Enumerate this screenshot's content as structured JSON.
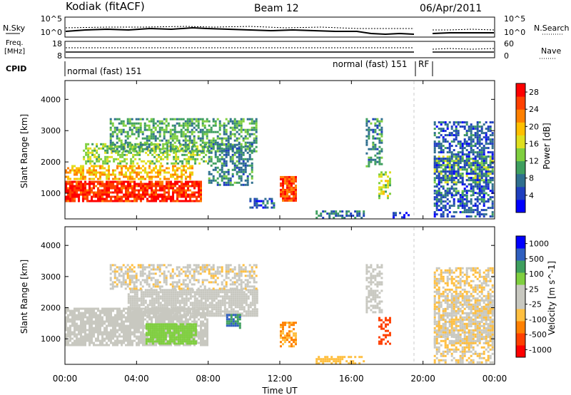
{
  "header": {
    "station": "Kodiak (fitACF)",
    "beam": "Beam 12",
    "date": "06/Apr/2011"
  },
  "colors": {
    "noise_sky_line": "#000000",
    "noise_search_line": "#000000",
    "frequency_line": "#000000",
    "nave_line": "#000000",
    "data_gap": "#ffffff",
    "axis": "#000000",
    "dashed_marker": "#c8c8c8"
  },
  "status_panels": {
    "noise": {
      "left_label": "N.Sky",
      "right_label": "N.Search",
      "left_ticks": [
        "10^5",
        "10^0"
      ],
      "right_ticks": [
        "10^5",
        "10^0"
      ]
    },
    "frequency": {
      "left_label_line1": "Freq.",
      "left_label_line2": "[MHz]",
      "right_label": "Nave",
      "left_ticks": [
        "18",
        "8"
      ],
      "right_ticks": [
        "60",
        "0"
      ]
    },
    "cpid": {
      "label": "CPID",
      "segments": [
        {
          "text": "normal (fast) 151",
          "start": "00:00",
          "end": "19:20"
        },
        {
          "text": "normal (fast) 151",
          "start": "19:20",
          "end": "19:35"
        },
        {
          "text": "RF",
          "start": "19:35",
          "end": "20:35"
        }
      ]
    }
  },
  "chart_data": [
    {
      "type": "heatmap",
      "name": "Power",
      "xlabel": "",
      "ylabel": "Slant Range [km]",
      "xlim": [
        "00:00",
        "24:00"
      ],
      "ylim": [
        180,
        4600
      ],
      "yticks": [
        1000,
        2000,
        3000,
        4000
      ],
      "xticks": [
        "00:00",
        "04:00",
        "08:00",
        "12:00",
        "16:00",
        "20:00",
        "00:00"
      ],
      "colorbar": {
        "label": "Power [dB]",
        "ticks": [
          4,
          8,
          12,
          16,
          20,
          24,
          28
        ],
        "range": [
          0,
          30
        ],
        "colors": [
          "#0000ff",
          "#1f3fbf",
          "#2f6f8f",
          "#3f9f5f",
          "#7fcf3f",
          "#dfdf1f",
          "#ffbf00",
          "#ff8000",
          "#ff4000",
          "#ff0000"
        ]
      },
      "data_gap": {
        "start": "19:35",
        "end": "20:35"
      },
      "regions": [
        {
          "t0": 0.0,
          "t1": 7.6,
          "r0": 750,
          "r1": 1400,
          "v": 27
        },
        {
          "t0": 0.0,
          "t1": 7.2,
          "r0": 1400,
          "r1": 1900,
          "v": 20
        },
        {
          "t0": 1.0,
          "t1": 8.0,
          "r0": 1900,
          "r1": 2600,
          "v": 14
        },
        {
          "t0": 2.5,
          "t1": 10.8,
          "r0": 2300,
          "r1": 3400,
          "v": 11
        },
        {
          "t0": 8.0,
          "t1": 10.5,
          "r0": 1200,
          "r1": 2600,
          "v": 9
        },
        {
          "t0": 10.3,
          "t1": 11.7,
          "r0": 500,
          "r1": 850,
          "v": 6
        },
        {
          "t0": 12.0,
          "t1": 13.0,
          "r0": 750,
          "r1": 1550,
          "v": 25
        },
        {
          "t0": 14.0,
          "t1": 16.8,
          "r0": 180,
          "r1": 450,
          "v": 7
        },
        {
          "t0": 16.8,
          "t1": 17.8,
          "r0": 1800,
          "r1": 3400,
          "v": 9
        },
        {
          "t0": 17.5,
          "t1": 18.2,
          "r0": 800,
          "r1": 1700,
          "v": 15
        },
        {
          "t0": 18.3,
          "t1": 19.2,
          "r0": 200,
          "r1": 400,
          "v": 5
        },
        {
          "t0": 20.6,
          "t1": 24.0,
          "r0": 900,
          "r1": 1100,
          "v": 10
        },
        {
          "t0": 20.6,
          "t1": 24.0,
          "r0": 1300,
          "r1": 2200,
          "v": 14
        },
        {
          "t0": 20.6,
          "t1": 24.0,
          "r0": 200,
          "r1": 3300,
          "v": 6
        }
      ]
    },
    {
      "type": "heatmap",
      "name": "Velocity",
      "xlabel": "Time UT",
      "ylabel": "Slant Range [km]",
      "xlim": [
        "00:00",
        "24:00"
      ],
      "ylim": [
        180,
        4600
      ],
      "yticks": [
        1000,
        2000,
        3000,
        4000
      ],
      "xticks": [
        "00:00",
        "04:00",
        "08:00",
        "12:00",
        "16:00",
        "20:00",
        "00:00"
      ],
      "colorbar": {
        "label": "Velocity [m s^-1]",
        "ticks": [
          "1000",
          "500",
          "100",
          "25",
          "-25",
          "-100",
          "-500",
          "-1000"
        ],
        "range": [
          -1000,
          1000
        ],
        "colors": [
          "#ff0000",
          "#ff4000",
          "#ff8000",
          "#ffbf40",
          "#c8c8c0",
          "#c8c8c0",
          "#7fcf3f",
          "#3f9f5f",
          "#2f5fbf",
          "#0000ff"
        ]
      },
      "data_gap": {
        "start": "19:35",
        "end": "20:35"
      },
      "ground_scatter_color": "#c8c8c0",
      "regions": [
        {
          "t0": 0.0,
          "t1": 8.0,
          "r0": 750,
          "r1": 2000,
          "v": 0
        },
        {
          "t0": 3.5,
          "t1": 10.8,
          "r0": 1700,
          "r1": 2600,
          "v": 0
        },
        {
          "t0": 4.5,
          "t1": 7.4,
          "r0": 800,
          "r1": 1500,
          "v": 300
        },
        {
          "t0": 2.5,
          "t1": 10.8,
          "r0": 2600,
          "r1": 3400,
          "v": -150
        },
        {
          "t0": 9.0,
          "t1": 9.8,
          "r0": 1300,
          "r1": 1800,
          "v": 600
        },
        {
          "t0": 12.0,
          "t1": 13.0,
          "r0": 750,
          "r1": 1550,
          "v": -400
        },
        {
          "t0": 14.0,
          "t1": 16.8,
          "r0": 180,
          "r1": 450,
          "v": -300
        },
        {
          "t0": 16.8,
          "t1": 17.8,
          "r0": 1800,
          "r1": 3400,
          "v": 0
        },
        {
          "t0": 17.5,
          "t1": 18.2,
          "r0": 800,
          "r1": 1700,
          "v": -700
        },
        {
          "t0": 20.6,
          "t1": 24.0,
          "r0": 800,
          "r1": 2400,
          "v": 0
        },
        {
          "t0": 20.6,
          "t1": 24.0,
          "r0": 200,
          "r1": 3300,
          "v": -200
        }
      ]
    }
  ]
}
